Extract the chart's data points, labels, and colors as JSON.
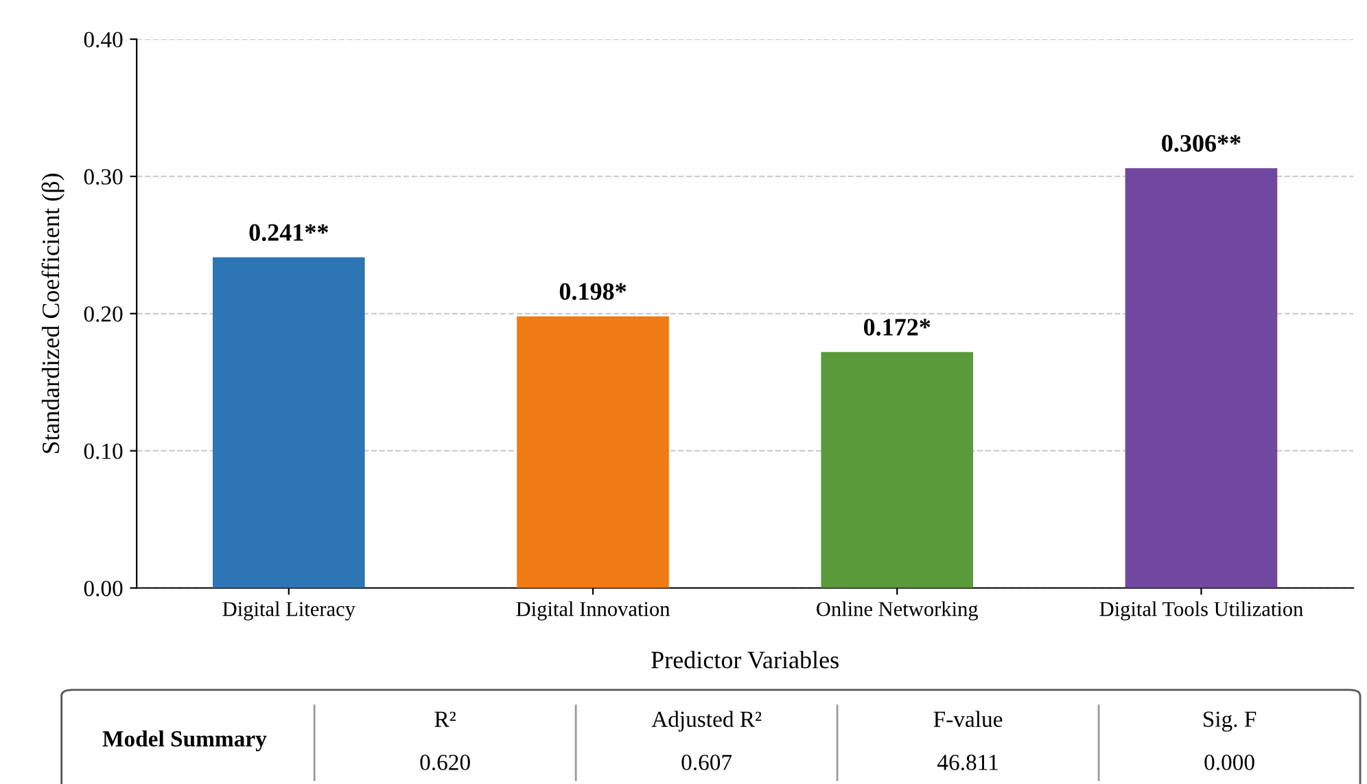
{
  "chart_data": {
    "type": "bar",
    "xlabel": "Predictor Variables",
    "ylabel": "Standardized Coefficient (β)",
    "categories": [
      "Digital Literacy",
      "Digital Innovation",
      "Online Networking",
      "Digital Tools Utilization"
    ],
    "values": [
      0.241,
      0.198,
      0.172,
      0.306
    ],
    "colors": [
      "#2e75b6",
      "#f07b14",
      "#5b9a3a",
      "#7048a0"
    ],
    "value_labels": [
      "0.241**",
      "0.198*",
      "0.172*",
      "0.306**"
    ],
    "ylim": [
      0,
      0.4
    ],
    "yticks": [
      {
        "value": 0,
        "label": "0.00"
      },
      {
        "value": 0.1,
        "label": "0.10"
      },
      {
        "value": 0.2,
        "label": "0.20"
      },
      {
        "value": 0.3,
        "label": "0.30"
      },
      {
        "value": 0.4,
        "label": "0.40"
      }
    ],
    "grid": "y",
    "annotations": [
      "Model Summary",
      "R²",
      "0.620",
      "Adjusted R²",
      "0.607",
      "F-value",
      "46.811",
      "Sig. F",
      "0.000"
    ]
  }
}
